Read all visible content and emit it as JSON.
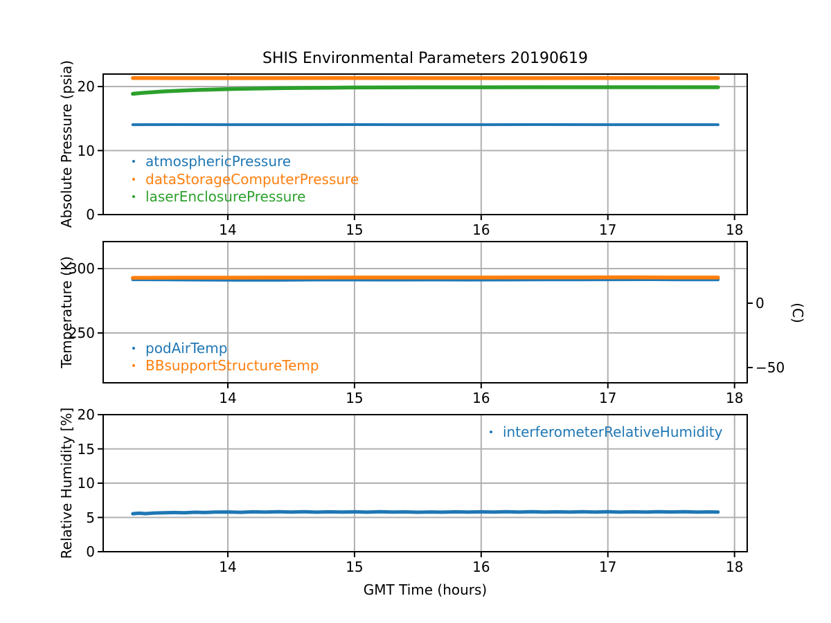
{
  "title": "SHIS Environmental Parameters 20190619",
  "xlabel": "GMT Time (hours)",
  "colors": {
    "series_blue": "#1f77b4",
    "series_orange": "#ff7f0e",
    "series_green": "#2ca02c",
    "grid": "#b0b0b0",
    "spine": "#000000",
    "background": "#ffffff"
  },
  "chart_data": [
    {
      "type": "scatter",
      "ylabel": "Absolute Pressure (psia)",
      "xlim": [
        13.016,
        18.1
      ],
      "ylim": [
        0,
        21.95
      ],
      "xticks": [
        14,
        15,
        16,
        17,
        18
      ],
      "xticklabels": [
        "14",
        "15",
        "16",
        "17",
        "18"
      ],
      "yticks": [
        0,
        10,
        20
      ],
      "yticklabels": [
        "0",
        "10",
        "20"
      ],
      "grid": true,
      "legend_position": "lower left inside",
      "series": [
        {
          "name": "atmosphericPressure",
          "color": "#1f77b4",
          "thickness": 4,
          "points": [
            [
              13.25,
              14.05
            ],
            [
              13.6,
              14.06
            ],
            [
              14.0,
              14.05
            ],
            [
              14.5,
              14.05
            ],
            [
              15.0,
              14.06
            ],
            [
              15.5,
              14.05
            ],
            [
              16.0,
              14.05
            ],
            [
              16.5,
              14.06
            ],
            [
              17.0,
              14.05
            ],
            [
              17.5,
              14.05
            ],
            [
              17.87,
              14.05
            ]
          ]
        },
        {
          "name": "dataStorageComputerPressure",
          "color": "#ff7f0e",
          "thickness": 5.5,
          "points": [
            [
              13.25,
              21.32
            ],
            [
              14.0,
              21.31
            ],
            [
              15.0,
              21.32
            ],
            [
              16.0,
              21.31
            ],
            [
              17.0,
              21.32
            ],
            [
              17.87,
              21.31
            ]
          ]
        },
        {
          "name": "laserEnclosurePressure",
          "color": "#2ca02c",
          "thickness": 5.5,
          "points": [
            [
              13.25,
              18.87
            ],
            [
              13.32,
              19.0
            ],
            [
              13.4,
              19.12
            ],
            [
              13.5,
              19.25
            ],
            [
              13.62,
              19.36
            ],
            [
              13.75,
              19.46
            ],
            [
              13.9,
              19.55
            ],
            [
              14.05,
              19.62
            ],
            [
              14.2,
              19.68
            ],
            [
              14.4,
              19.74
            ],
            [
              14.6,
              19.79
            ],
            [
              14.8,
              19.82
            ],
            [
              15.0,
              19.85
            ],
            [
              15.25,
              19.87
            ],
            [
              15.5,
              19.88
            ],
            [
              16.0,
              19.89
            ],
            [
              16.5,
              19.9
            ],
            [
              17.0,
              19.9
            ],
            [
              17.5,
              19.9
            ],
            [
              17.87,
              19.9
            ]
          ]
        }
      ]
    },
    {
      "type": "scatter",
      "ylabel": "Temperature (K)",
      "xlim": [
        13.016,
        18.1
      ],
      "ylim": [
        211.3,
        321.0
      ],
      "xticks": [
        14,
        15,
        16,
        17,
        18
      ],
      "xticklabels": [
        "14",
        "15",
        "16",
        "17",
        "18"
      ],
      "yticks": [
        250,
        300
      ],
      "yticklabels": [
        "250",
        "300"
      ],
      "grid": true,
      "legend_position": "lower left inside",
      "right_axis": {
        "label": "(C)",
        "ticks": [
          {
            "value": 273.15,
            "label": "0"
          },
          {
            "value": 223.15,
            "label": "−50"
          }
        ]
      },
      "series": [
        {
          "name": "podAirTemp",
          "color": "#1f77b4",
          "thickness": 4.5,
          "points": [
            [
              13.25,
              291.5
            ],
            [
              13.5,
              291.4
            ],
            [
              13.8,
              291.2
            ],
            [
              14.1,
              291.1
            ],
            [
              14.4,
              291.1
            ],
            [
              14.7,
              291.3
            ],
            [
              15.0,
              291.3
            ],
            [
              15.3,
              291.2
            ],
            [
              15.6,
              291.3
            ],
            [
              15.9,
              291.2
            ],
            [
              16.2,
              291.3
            ],
            [
              16.5,
              291.4
            ],
            [
              16.8,
              291.4
            ],
            [
              17.1,
              291.5
            ],
            [
              17.35,
              291.6
            ],
            [
              17.55,
              291.4
            ],
            [
              17.87,
              291.4
            ]
          ]
        },
        {
          "name": "BBsupportStructureTemp",
          "color": "#ff7f0e",
          "thickness": 5.5,
          "points": [
            [
              13.25,
              292.8
            ],
            [
              13.6,
              293.0
            ],
            [
              14.0,
              293.0
            ],
            [
              14.5,
              293.05
            ],
            [
              15.0,
              293.1
            ],
            [
              15.5,
              293.1
            ],
            [
              16.0,
              293.1
            ],
            [
              16.4,
              293.15
            ],
            [
              16.8,
              293.2
            ],
            [
              17.2,
              293.25
            ],
            [
              17.5,
              293.1
            ],
            [
              17.87,
              293.1
            ]
          ]
        }
      ]
    },
    {
      "type": "scatter",
      "ylabel": "Relative Humidity [%]",
      "xlim": [
        13.016,
        18.1
      ],
      "ylim": [
        0,
        20
      ],
      "xticks": [
        14,
        15,
        16,
        17,
        18
      ],
      "xticklabels": [
        "14",
        "15",
        "16",
        "17",
        "18"
      ],
      "yticks": [
        0,
        5,
        10,
        15,
        20
      ],
      "yticklabels": [
        "0",
        "5",
        "10",
        "15",
        "20"
      ],
      "grid": true,
      "legend_position": "upper right inside",
      "series": [
        {
          "name": "interferometerRelativeHumidity",
          "color": "#1f77b4",
          "thickness": 5,
          "points": [
            [
              13.25,
              5.55
            ],
            [
              13.3,
              5.62
            ],
            [
              13.35,
              5.56
            ],
            [
              13.42,
              5.65
            ],
            [
              13.5,
              5.68
            ],
            [
              13.58,
              5.72
            ],
            [
              13.66,
              5.68
            ],
            [
              13.74,
              5.76
            ],
            [
              13.82,
              5.72
            ],
            [
              13.9,
              5.78
            ],
            [
              14.0,
              5.8
            ],
            [
              14.1,
              5.75
            ],
            [
              14.2,
              5.82
            ],
            [
              14.3,
              5.78
            ],
            [
              14.4,
              5.84
            ],
            [
              14.5,
              5.79
            ],
            [
              14.6,
              5.83
            ],
            [
              14.7,
              5.77
            ],
            [
              14.8,
              5.82
            ],
            [
              14.9,
              5.78
            ],
            [
              15.0,
              5.82
            ],
            [
              15.1,
              5.77
            ],
            [
              15.2,
              5.83
            ],
            [
              15.3,
              5.78
            ],
            [
              15.4,
              5.81
            ],
            [
              15.5,
              5.76
            ],
            [
              15.6,
              5.8
            ],
            [
              15.7,
              5.77
            ],
            [
              15.8,
              5.82
            ],
            [
              15.9,
              5.78
            ],
            [
              16.0,
              5.82
            ],
            [
              16.1,
              5.78
            ],
            [
              16.2,
              5.83
            ],
            [
              16.3,
              5.79
            ],
            [
              16.4,
              5.84
            ],
            [
              16.5,
              5.78
            ],
            [
              16.6,
              5.82
            ],
            [
              16.7,
              5.78
            ],
            [
              16.8,
              5.83
            ],
            [
              16.9,
              5.79
            ],
            [
              17.0,
              5.83
            ],
            [
              17.1,
              5.78
            ],
            [
              17.2,
              5.82
            ],
            [
              17.3,
              5.78
            ],
            [
              17.4,
              5.83
            ],
            [
              17.5,
              5.8
            ],
            [
              17.6,
              5.83
            ],
            [
              17.7,
              5.79
            ],
            [
              17.8,
              5.81
            ],
            [
              17.87,
              5.79
            ]
          ]
        }
      ]
    }
  ]
}
